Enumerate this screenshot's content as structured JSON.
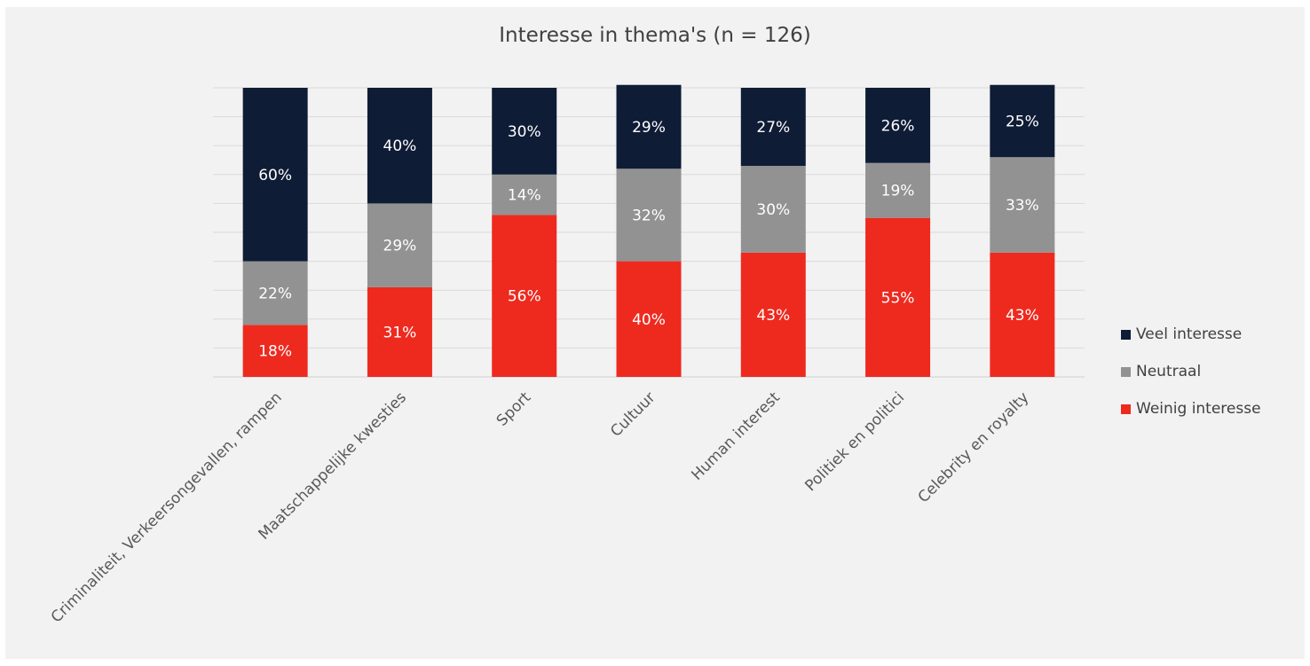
{
  "chart_data": {
    "type": "bar",
    "stacked": true,
    "percent_stacked": true,
    "title": "Interesse in thema's (n = 126)",
    "xlabel": "",
    "ylabel": "",
    "ylim": [
      0,
      100
    ],
    "grid": true,
    "legend_position": "right",
    "categories": [
      "Criminaliteit, Verkeersongevallen, rampen",
      "Maatschappelijke kwesties",
      "Sport",
      "Cultuur",
      "Human interest",
      "Politiek en politici",
      "Celebrity en royalty"
    ],
    "series": [
      {
        "name": "Weinig interesse",
        "color": "#ee2a1f",
        "values": [
          18,
          31,
          56,
          40,
          43,
          55,
          43
        ]
      },
      {
        "name": "Neutraal",
        "color": "#929292",
        "values": [
          22,
          29,
          14,
          32,
          30,
          19,
          33
        ]
      },
      {
        "name": "Veel interesse",
        "color": "#0f1c36",
        "values": [
          60,
          40,
          30,
          29,
          27,
          26,
          25
        ]
      }
    ],
    "legend_order": [
      "Veel interesse",
      "Neutraal",
      "Weinig interesse"
    ],
    "value_suffix": "%"
  }
}
